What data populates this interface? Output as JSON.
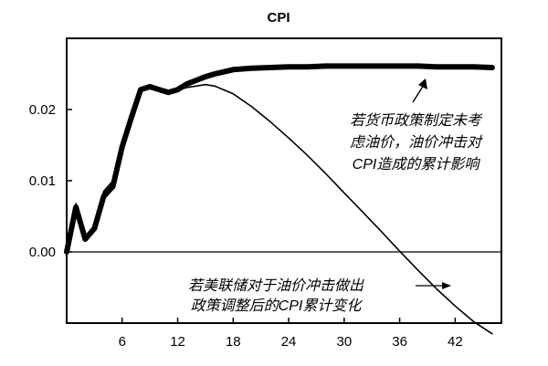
{
  "chart_data": {
    "type": "line",
    "title": "CPI",
    "xlabel": "",
    "ylabel": "",
    "xlim": [
      0,
      47
    ],
    "ylim": [
      -0.01,
      0.03
    ],
    "xticks": [
      6,
      12,
      18,
      24,
      30,
      36,
      42
    ],
    "yticks": [
      0.0,
      0.01,
      0.02
    ],
    "ytick_labels": [
      "0.00",
      "0.01",
      "0.02"
    ],
    "zero_line": true,
    "grid": false,
    "series": [
      {
        "key": "no-fed-response",
        "style": "thick",
        "color": "#000000",
        "x": [
          0,
          1,
          2,
          3,
          4,
          5,
          6,
          7,
          8,
          9,
          10,
          11,
          12,
          13,
          14,
          15,
          16,
          17,
          18,
          20,
          22,
          24,
          26,
          28,
          30,
          32,
          34,
          36,
          38,
          40,
          42,
          44,
          46
        ],
        "y": [
          0.0,
          0.0063,
          0.0018,
          0.0033,
          0.0078,
          0.0092,
          0.0148,
          0.0189,
          0.0228,
          0.0232,
          0.0228,
          0.0224,
          0.0228,
          0.0236,
          0.0241,
          0.0246,
          0.025,
          0.0253,
          0.0256,
          0.0258,
          0.0259,
          0.026,
          0.026,
          0.0261,
          0.0261,
          0.0261,
          0.0261,
          0.0261,
          0.0261,
          0.026,
          0.026,
          0.026,
          0.0259
        ]
      },
      {
        "key": "with-fed-response",
        "style": "thin",
        "color": "#000000",
        "x": [
          0,
          1,
          2,
          3,
          4,
          5,
          6,
          7,
          8,
          9,
          10,
          11,
          12,
          13,
          14,
          15,
          16,
          18,
          20,
          22,
          24,
          26,
          28,
          30,
          32,
          34,
          36,
          38,
          40,
          42,
          44,
          46
        ],
        "y": [
          0.0,
          0.0068,
          0.002,
          0.0038,
          0.0085,
          0.01,
          0.0151,
          0.0191,
          0.0229,
          0.0233,
          0.0228,
          0.0223,
          0.0227,
          0.0231,
          0.0233,
          0.0235,
          0.0233,
          0.0222,
          0.0204,
          0.0183,
          0.016,
          0.0136,
          0.011,
          0.0083,
          0.0056,
          0.0029,
          0.0001,
          -0.0026,
          -0.0052,
          -0.0076,
          -0.0098,
          -0.0115
        ]
      }
    ],
    "annotations": [
      {
        "key": "annot-no-response",
        "lines": [
          "若货币政策制定未考",
          "虑油价，油价冲击对",
          "CPI造成的累计影响"
        ]
      },
      {
        "key": "annot-fed-response",
        "lines": [
          "若美联储对于油价冲击做出",
          "政策调整后的CPI累计变化"
        ]
      }
    ]
  }
}
